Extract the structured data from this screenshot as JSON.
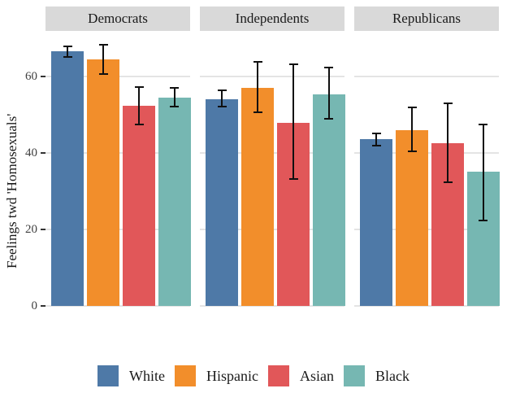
{
  "chart_data": {
    "type": "bar",
    "title": "",
    "ylabel": "Feelings twd 'Homosexuals'",
    "xlabel": "",
    "yticks": [
      0,
      20,
      40,
      60
    ],
    "ylim": [
      0,
      72
    ],
    "grid": "horizontal-major-only",
    "legend_position": "bottom",
    "error_bars": true,
    "error_bar_color": "#101010",
    "strip_background": "#d9d9d9",
    "gridline_color": "#e4e4e4",
    "facet_labels": [
      "Democrats",
      "Independents",
      "Republicans"
    ],
    "groups": [
      {
        "name": "White",
        "color": "#4E79A7"
      },
      {
        "name": "Hispanic",
        "color": "#F28E2B"
      },
      {
        "name": "Asian",
        "color": "#E15759"
      },
      {
        "name": "Black",
        "color": "#76B7B2"
      }
    ],
    "panels": [
      {
        "label": "Democrats",
        "bars": [
          {
            "group": "White",
            "value": 66.6,
            "ci_low": 65.2,
            "ci_high": 67.9
          },
          {
            "group": "Hispanic",
            "value": 64.5,
            "ci_low": 60.7,
            "ci_high": 68.3
          },
          {
            "group": "Asian",
            "value": 52.3,
            "ci_low": 47.4,
            "ci_high": 57.3
          },
          {
            "group": "Black",
            "value": 54.5,
            "ci_low": 52.1,
            "ci_high": 57.1
          }
        ]
      },
      {
        "label": "Independents",
        "bars": [
          {
            "group": "White",
            "value": 54.1,
            "ci_low": 52.2,
            "ci_high": 56.4
          },
          {
            "group": "Hispanic",
            "value": 57.1,
            "ci_low": 50.7,
            "ci_high": 63.9
          },
          {
            "group": "Asian",
            "value": 47.9,
            "ci_low": 33.1,
            "ci_high": 63.3
          },
          {
            "group": "Black",
            "value": 55.4,
            "ci_low": 49.0,
            "ci_high": 62.4
          }
        ]
      },
      {
        "label": "Republicans",
        "bars": [
          {
            "group": "White",
            "value": 43.7,
            "ci_low": 41.9,
            "ci_high": 45.1
          },
          {
            "group": "Hispanic",
            "value": 45.9,
            "ci_low": 40.4,
            "ci_high": 51.9
          },
          {
            "group": "Asian",
            "value": 42.6,
            "ci_low": 32.3,
            "ci_high": 53.0
          },
          {
            "group": "Black",
            "value": 35.0,
            "ci_low": 22.2,
            "ci_high": 47.4
          }
        ]
      }
    ]
  }
}
